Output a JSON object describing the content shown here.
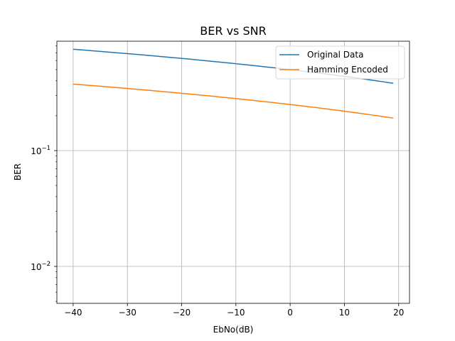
{
  "chart_data": {
    "type": "line",
    "title": "BER vs SNR",
    "xlabel": "EbNo(dB)",
    "ylabel": "BER",
    "xlim": [
      -43,
      22
    ],
    "ylim": [
      0.0048,
      0.88
    ],
    "yscale": "log",
    "grid": true,
    "legend_position": "top-right",
    "x_ticks": [
      -40,
      -30,
      -20,
      -10,
      0,
      10,
      20
    ],
    "x_tick_labels": [
      "−40",
      "−30",
      "−20",
      "−10",
      "0",
      "10",
      "20"
    ],
    "y_ticks": [
      0.01,
      0.1
    ],
    "y_tick_labels": [
      {
        "base": "10",
        "exp": "−2"
      },
      {
        "base": "10",
        "exp": "−1"
      }
    ],
    "x": [
      -40,
      -39,
      -38,
      -37,
      -36,
      -35,
      -34,
      -33,
      -32,
      -31,
      -30,
      -29,
      -28,
      -27,
      -26,
      -25,
      -24,
      -23,
      -22,
      -21,
      -20,
      -19,
      -18,
      -17,
      -16,
      -15,
      -14,
      -13,
      -12,
      -11,
      -10,
      -9,
      -8,
      -7,
      -6,
      -5,
      -4,
      -3,
      -2,
      -1,
      0,
      1,
      2,
      3,
      4,
      5,
      6,
      7,
      8,
      9,
      10,
      11,
      12,
      13,
      14,
      15,
      16,
      17,
      18,
      19
    ],
    "series": [
      {
        "name": "Original Data",
        "color": "#1f77b4",
        "values": [
          0.75,
          0.7438,
          0.7375,
          0.7313,
          0.725,
          0.7188,
          0.7125,
          0.7063,
          0.7,
          0.6938,
          0.6875,
          0.6813,
          0.675,
          0.6688,
          0.6625,
          0.6563,
          0.65,
          0.6438,
          0.6375,
          0.6313,
          0.625,
          0.6188,
          0.6125,
          0.6063,
          0.6,
          0.5938,
          0.5875,
          0.5813,
          0.575,
          0.5688,
          0.5625,
          0.5563,
          0.55,
          0.5438,
          0.5375,
          0.5313,
          0.525,
          0.5188,
          0.5125,
          0.5063,
          0.5,
          0.4938,
          0.4875,
          0.4813,
          0.475,
          0.4688,
          0.4625,
          0.4563,
          0.45,
          0.4438,
          0.4375,
          0.4313,
          0.425,
          0.4188,
          0.4125,
          0.4063,
          0.4,
          0.3938,
          0.3875,
          0.3813
        ]
      },
      {
        "name": "Hamming Encoded",
        "color": "#ff7f0e",
        "values": [
          0.375,
          0.3719,
          0.3688,
          0.3656,
          0.3625,
          0.3594,
          0.3563,
          0.3531,
          0.35,
          0.3469,
          0.3438,
          0.3406,
          0.3375,
          0.3344,
          0.3313,
          0.3281,
          0.325,
          0.3219,
          0.3188,
          0.3156,
          0.3125,
          0.3094,
          0.3063,
          0.3031,
          0.3,
          0.2969,
          0.2938,
          0.2906,
          0.2875,
          0.2844,
          0.2813,
          0.2781,
          0.275,
          0.2719,
          0.2688,
          0.2656,
          0.2625,
          0.2594,
          0.2563,
          0.2531,
          0.25,
          0.2469,
          0.2438,
          0.2406,
          0.2375,
          0.2344,
          0.2313,
          0.2281,
          0.225,
          0.2219,
          0.2188,
          0.2156,
          0.2125,
          0.2094,
          0.2063,
          0.2031,
          0.2,
          0.1969,
          0.1938,
          0.1906
        ]
      }
    ]
  }
}
